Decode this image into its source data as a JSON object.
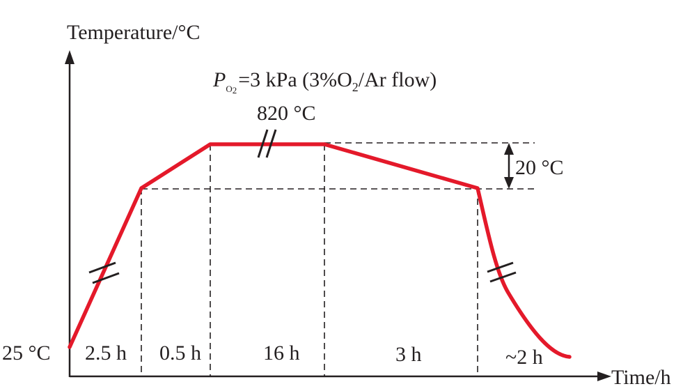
{
  "y_axis_label": "Temperature/°C",
  "x_axis_label": "Time/h",
  "atmosphere": {
    "p_symbol": "P",
    "p_subscript": "O",
    "p_subscript2": "2",
    "rest_a": "=3 kPa (3%O",
    "rest_sub": "2",
    "rest_b": "/Ar flow)"
  },
  "peak_temperature": "820 °C",
  "start_temperature": "25 °C",
  "temperature_drop": "20 °C",
  "segments": [
    "2.5 h",
    "0.5 h",
    "16 h",
    "3 h",
    "~2 h"
  ],
  "colors": {
    "profile": "#e4192a",
    "axis": "#231f20",
    "guide": "#231f20"
  }
}
